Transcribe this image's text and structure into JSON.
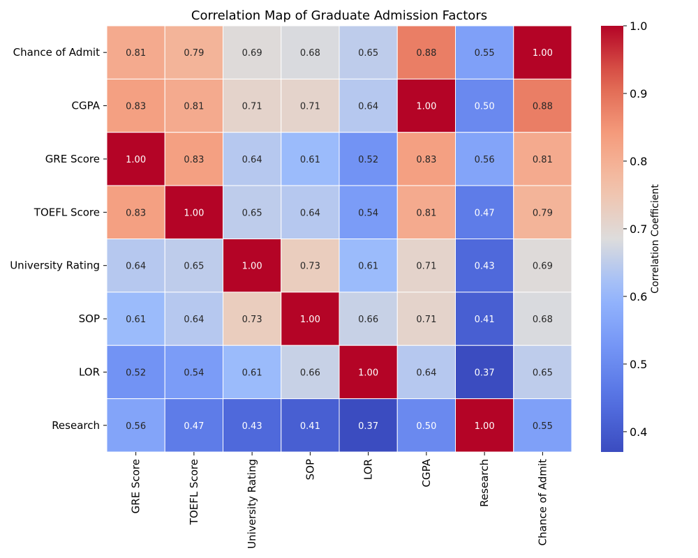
{
  "chart_data": {
    "type": "heatmap",
    "title": "Correlation Map of Graduate Admission Factors",
    "rows": [
      "Chance of Admit",
      "CGPA",
      "GRE Score",
      "TOEFL Score",
      "University Rating",
      "SOP",
      "LOR ",
      "Research"
    ],
    "columns": [
      "GRE Score",
      "TOEFL Score",
      "University Rating",
      "SOP",
      "LOR ",
      "CGPA",
      "Research",
      "Chance of Admit"
    ],
    "values": [
      [
        0.81,
        0.79,
        0.69,
        0.68,
        0.65,
        0.88,
        0.55,
        1.0
      ],
      [
        0.83,
        0.81,
        0.71,
        0.71,
        0.64,
        1.0,
        0.5,
        0.88
      ],
      [
        1.0,
        0.83,
        0.64,
        0.61,
        0.52,
        0.83,
        0.56,
        0.81
      ],
      [
        0.83,
        1.0,
        0.65,
        0.64,
        0.54,
        0.81,
        0.47,
        0.79
      ],
      [
        0.64,
        0.65,
        1.0,
        0.73,
        0.61,
        0.71,
        0.43,
        0.69
      ],
      [
        0.61,
        0.64,
        0.73,
        1.0,
        0.66,
        0.71,
        0.41,
        0.68
      ],
      [
        0.52,
        0.54,
        0.61,
        0.66,
        1.0,
        0.64,
        0.37,
        0.65
      ],
      [
        0.56,
        0.47,
        0.43,
        0.41,
        0.37,
        0.5,
        1.0,
        0.55
      ]
    ],
    "colorbar": {
      "label": "Correlation Coefficient",
      "range": [
        0.37,
        1.0
      ],
      "ticks": [
        "1.0",
        "0.9",
        "0.8",
        "0.7",
        "0.6",
        "0.5",
        "0.4"
      ],
      "colormap": "coolwarm",
      "low_color": "#3b4cc0",
      "mid_color": "#dddddd",
      "high_color": "#b40426"
    },
    "annotation_format": "2 decimals"
  }
}
